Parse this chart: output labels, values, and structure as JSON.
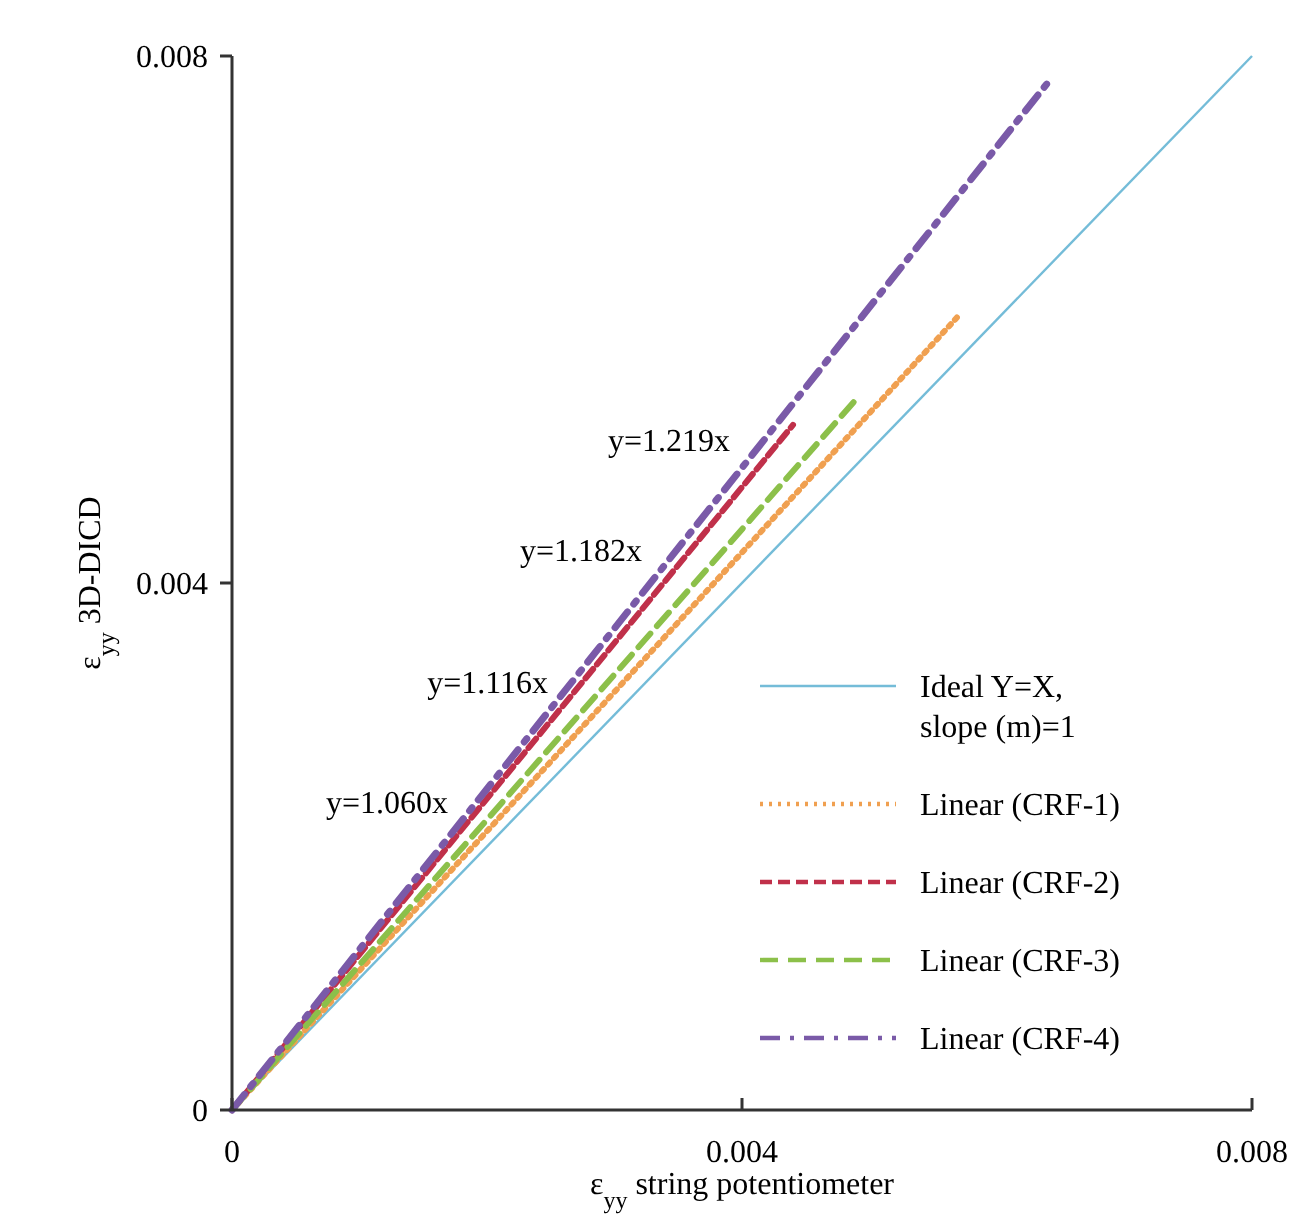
{
  "chart_data": {
    "type": "line",
    "xlabel": "ε$_{yy}$ string potentiometer",
    "ylabel": "ε$_{yy}$ 3D-DICD",
    "xlim": [
      0,
      0.008
    ],
    "ylim": [
      0,
      0.008
    ],
    "xticks": [
      0,
      0.004,
      0.008
    ],
    "yticks": [
      0,
      0.004,
      0.008
    ],
    "grid": false,
    "legend": "bottom right",
    "marker": "none",
    "series": [
      {
        "name": "Ideal Y=X, slope (m)=1",
        "color": "#74bcd8",
        "line_style": "solid",
        "x": [
          0,
          0.008
        ],
        "values": [
          0,
          0.008
        ]
      },
      {
        "name": "Linear (CRF-1)",
        "color": "#f0a050",
        "line_style": "dotted",
        "x": [
          0,
          0.0057
        ],
        "values": [
          0,
          0.00603
        ]
      },
      {
        "name": "Linear (CRF-2)",
        "color": "#c0304a",
        "line_style": "dashed",
        "x": [
          0,
          0.0044
        ],
        "values": [
          0,
          0.0052
        ]
      },
      {
        "name": "Linear (CRF-3)",
        "color": "#8cc04a",
        "line_style": "longdash",
        "x": [
          0,
          0.0049
        ],
        "values": [
          0,
          0.0054
        ]
      },
      {
        "name": "Linear (CRF-4)",
        "color": "#7a5aa8",
        "line_style": "dashdot",
        "x": [
          0,
          0.0064
        ],
        "values": [
          0,
          0.0078
        ]
      }
    ],
    "annotations": [
      "y=1.219x",
      "y=1.182x",
      "y=1.116x",
      "y=1.060x"
    ]
  }
}
